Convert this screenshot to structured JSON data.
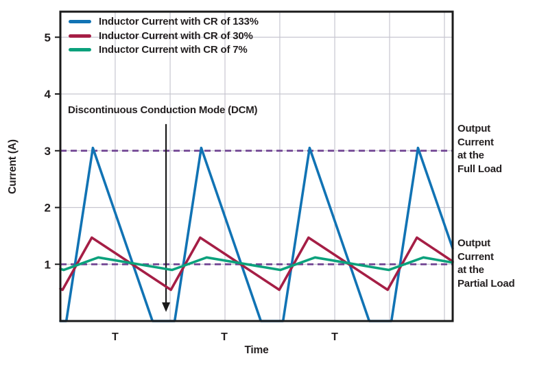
{
  "figure": {
    "background": "#ffffff",
    "text_color": "#231f20",
    "grid_color": "#c7c6d0",
    "frame_color": "#1a1a1a"
  },
  "chart_data": {
    "type": "line",
    "title": "",
    "xlabel": "Time",
    "ylabel": "Current (A)",
    "x_unit": "switching periods (T)",
    "xlim": [
      0,
      3.62
    ],
    "ylim": [
      0,
      5.46
    ],
    "yticks": [
      1,
      2,
      3,
      4,
      5
    ],
    "xticks": [
      {
        "t": 0.506,
        "label": "T"
      },
      {
        "t": 1.513,
        "label": "T"
      },
      {
        "t": 2.532,
        "label": "T"
      }
    ],
    "x_gridlines_t": [
      0.506,
      1.013,
      1.519,
      2.025,
      2.532,
      3.038,
      3.544
    ],
    "y_gridlines": [
      1,
      2,
      3,
      4,
      5
    ],
    "grid_on": true,
    "legend_position": "top-left-inside",
    "series": [
      {
        "name": "Inductor Current with CR of 133%",
        "color": "#1173b4",
        "points": [
          [
            0,
            0
          ],
          [
            0.055,
            0
          ],
          [
            0.3,
            3.05
          ],
          [
            0.85,
            0
          ],
          [
            1.055,
            0
          ],
          [
            1.3,
            3.05
          ],
          [
            1.85,
            0
          ],
          [
            2.055,
            0
          ],
          [
            2.3,
            3.05
          ],
          [
            2.85,
            0
          ],
          [
            3.055,
            0
          ],
          [
            3.3,
            3.05
          ],
          [
            3.62,
            1.28
          ]
        ]
      },
      {
        "name": "Inductor Current with CR of 30%",
        "color": "#a51e45",
        "points": [
          [
            0,
            0.57
          ],
          [
            0.02,
            0.55
          ],
          [
            0.29,
            1.47
          ],
          [
            1.02,
            0.55
          ],
          [
            1.29,
            1.47
          ],
          [
            2.02,
            0.55
          ],
          [
            2.29,
            1.47
          ],
          [
            3.02,
            0.55
          ],
          [
            3.29,
            1.47
          ],
          [
            3.62,
            1.05
          ]
        ]
      },
      {
        "name": "Inductor Current with CR of 7%",
        "color": "#0ba17c",
        "points": [
          [
            0,
            0.92
          ],
          [
            0.03,
            0.9
          ],
          [
            0.35,
            1.12
          ],
          [
            1.03,
            0.9
          ],
          [
            1.35,
            1.12
          ],
          [
            2.03,
            0.9
          ],
          [
            2.35,
            1.12
          ],
          [
            3.03,
            0.9
          ],
          [
            3.35,
            1.12
          ],
          [
            3.62,
            1.03
          ]
        ]
      }
    ],
    "reference_lines": [
      {
        "value": 3.0,
        "style": "dashed",
        "color": "#6e4191",
        "label": "Output\nCurrent\nat the\nFull Load"
      },
      {
        "value": 1.0,
        "style": "dashed",
        "color": "#6e4191",
        "label": "Output\nCurrent\nat the\nPartial Load"
      }
    ],
    "annotation": {
      "text": "Discontinuous Conduction Mode (DCM)",
      "arrow_t": 0.975,
      "arrow_from_i": 3.47,
      "arrow_to_i": 0.16,
      "arrow_color": "#1a1a1a"
    }
  }
}
